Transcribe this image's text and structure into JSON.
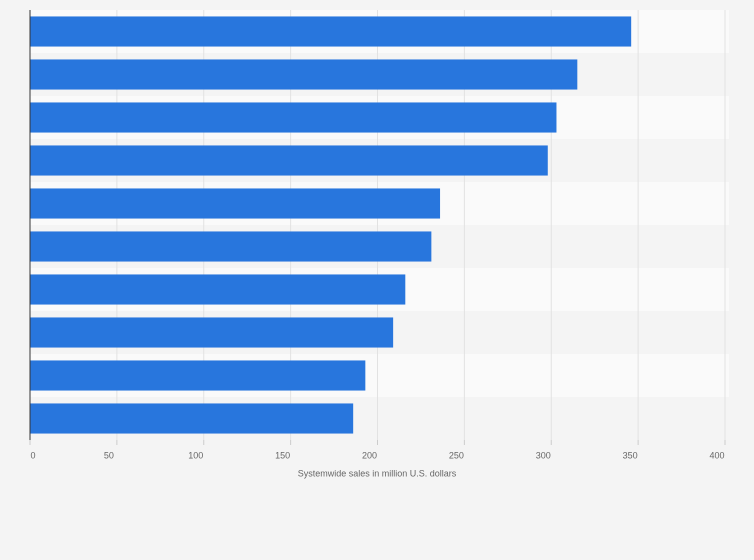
{
  "chart_data": {
    "type": "bar",
    "orientation": "horizontal",
    "categories": [
      null,
      null,
      null,
      null,
      null,
      null,
      null,
      null,
      null,
      null
    ],
    "values": [
      346,
      315,
      303,
      298,
      236,
      231,
      216,
      209,
      193,
      186
    ],
    "color": "#2876dd",
    "xlabel": "Systemwide sales in million U.S. dollars",
    "xlim": [
      0,
      400
    ],
    "xticks": [
      0,
      50,
      100,
      150,
      200,
      250,
      300,
      350,
      400
    ],
    "grid": true
  }
}
